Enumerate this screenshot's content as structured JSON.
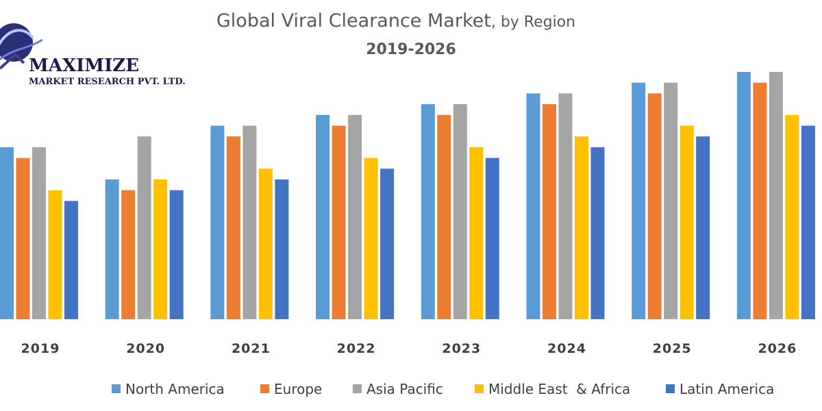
{
  "logo": {
    "name": "MAXIMIZE",
    "tagline": "MARKET RESEARCH PVT. LTD."
  },
  "chart_data": {
    "type": "bar",
    "title": "Global Viral Clearance Market",
    "title_suffix": ", by Region",
    "subtitle": "2019-2026",
    "xlabel": "",
    "ylabel": "",
    "ylim": [
      0,
      25
    ],
    "grid": false,
    "legend_position": "bottom",
    "categories": [
      "2019",
      "2020",
      "2021",
      "2022",
      "2023",
      "2024",
      "2025",
      "2026"
    ],
    "series": [
      {
        "name": "North America",
        "color": "#5b9bd5",
        "values": [
          16,
          13,
          18,
          19,
          20,
          21,
          22,
          23
        ]
      },
      {
        "name": "Europe",
        "color": "#ed7d31",
        "values": [
          15,
          12,
          17,
          18,
          19,
          20,
          21,
          22
        ]
      },
      {
        "name": "Asia Pacific",
        "color": "#a5a5a5",
        "values": [
          16,
          17,
          18,
          19,
          20,
          21,
          22,
          23
        ]
      },
      {
        "name": "Middle East  & Africa",
        "color": "#ffc000",
        "values": [
          12,
          13,
          14,
          15,
          16,
          17,
          18,
          19
        ]
      },
      {
        "name": "Latin America",
        "color": "#4472c4",
        "values": [
          11,
          12,
          13,
          14,
          15,
          16,
          17,
          18
        ]
      }
    ]
  }
}
